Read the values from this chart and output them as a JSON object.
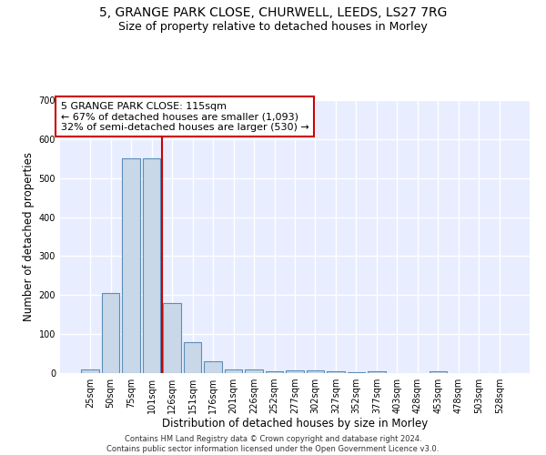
{
  "title1": "5, GRANGE PARK CLOSE, CHURWELL, LEEDS, LS27 7RG",
  "title2": "Size of property relative to detached houses in Morley",
  "xlabel": "Distribution of detached houses by size in Morley",
  "ylabel": "Number of detached properties",
  "annotation_line1": "5 GRANGE PARK CLOSE: 115sqm",
  "annotation_line2": "← 67% of detached houses are smaller (1,093)",
  "annotation_line3": "32% of semi-detached houses are larger (530) →",
  "categories": [
    "25sqm",
    "50sqm",
    "75sqm",
    "101sqm",
    "126sqm",
    "151sqm",
    "176sqm",
    "201sqm",
    "226sqm",
    "252sqm",
    "277sqm",
    "302sqm",
    "327sqm",
    "352sqm",
    "377sqm",
    "403sqm",
    "428sqm",
    "453sqm",
    "478sqm",
    "503sqm",
    "528sqm"
  ],
  "values": [
    10,
    205,
    550,
    550,
    180,
    80,
    30,
    10,
    10,
    5,
    8,
    8,
    5,
    3,
    5,
    0,
    0,
    5,
    0,
    0,
    0
  ],
  "bar_color": "#c8d8e8",
  "bar_edge_color": "#5b8db8",
  "bar_linewidth": 0.8,
  "vline_x": 3.5,
  "vline_color": "#cc0000",
  "vline_linewidth": 1.5,
  "background_color": "#e8eeff",
  "grid_color": "#ffffff",
  "annotation_box_edge": "#cc0000",
  "annotation_text_color": "#000000",
  "ylim": [
    0,
    700
  ],
  "yticks": [
    0,
    100,
    200,
    300,
    400,
    500,
    600,
    700
  ],
  "footer": "Contains HM Land Registry data © Crown copyright and database right 2024.\nContains public sector information licensed under the Open Government Licence v3.0.",
  "title1_fontsize": 10,
  "title2_fontsize": 9,
  "xlabel_fontsize": 8.5,
  "ylabel_fontsize": 8.5,
  "tick_fontsize": 7,
  "annotation_fontsize": 8,
  "footer_fontsize": 6
}
